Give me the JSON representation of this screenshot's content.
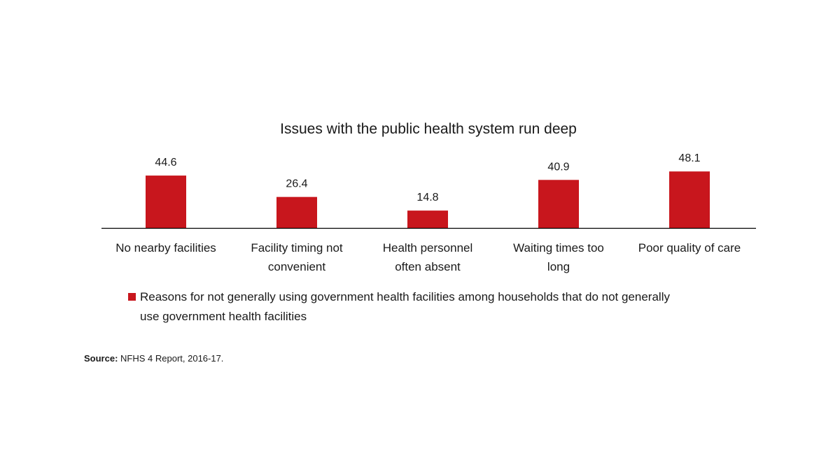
{
  "chart_data": {
    "type": "bar",
    "title": "Issues with the public health system run deep",
    "categories": [
      [
        "No nearby facilities"
      ],
      [
        "Facility timing not",
        "convenient"
      ],
      [
        "Health personnel",
        "often absent"
      ],
      [
        "Waiting times too",
        "long"
      ],
      [
        "Poor quality of care"
      ]
    ],
    "series": [
      {
        "name": "Reasons for not generally using government health facilities among households that do not generally use government health facilities",
        "values": [
          44.6,
          26.4,
          14.8,
          40.9,
          48.1
        ],
        "color": "#c8161d"
      }
    ],
    "data_labels": [
      "44.6",
      "26.4",
      "14.8",
      "40.9",
      "48.1"
    ],
    "legend_lines": [
      "Reasons for not generally using government health facilities among households that do not generally",
      "use government health facilities"
    ],
    "legend_position": "bottom",
    "ylim": [
      0,
      55
    ],
    "grid": false,
    "xlabel": "",
    "ylabel": ""
  },
  "source": {
    "label": "Source:",
    "text": " NFHS 4 Report, 2016-17."
  },
  "colors": {
    "bar": "#c8161d",
    "axis": "#000000",
    "text": "#1a1a1a"
  }
}
